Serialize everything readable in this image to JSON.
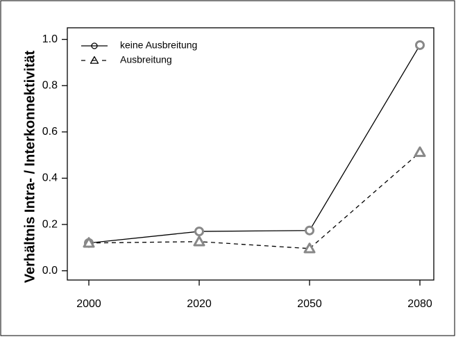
{
  "chart_data": {
    "type": "line",
    "ylabel": "Verhältnis Intra- / Interkonnektivität",
    "categories": [
      "2000",
      "2020",
      "2050",
      "2080"
    ],
    "series": [
      {
        "name": "keine Ausbreitung",
        "color": "#888888",
        "line_color": "#000000",
        "linestyle": "solid",
        "marker": "circle",
        "values": [
          0.12,
          0.17,
          0.174,
          0.975
        ]
      },
      {
        "name": "Ausbreitung",
        "color": "#888888",
        "line_color": "#000000",
        "linestyle": "dashed",
        "marker": "triangle",
        "values": [
          0.12,
          0.126,
          0.096,
          0.512
        ]
      }
    ],
    "ylim": [
      -0.04,
      1.05
    ],
    "yticks": [
      {
        "value": 0,
        "label": "0.0"
      },
      {
        "value": 0.2,
        "label": "0.2"
      },
      {
        "value": 0.4,
        "label": "0.4"
      },
      {
        "value": 0.6,
        "label": "0.6"
      },
      {
        "value": 0.8,
        "label": "0.8"
      },
      {
        "value": 1,
        "label": "1.0"
      }
    ],
    "legend": "top-left"
  }
}
